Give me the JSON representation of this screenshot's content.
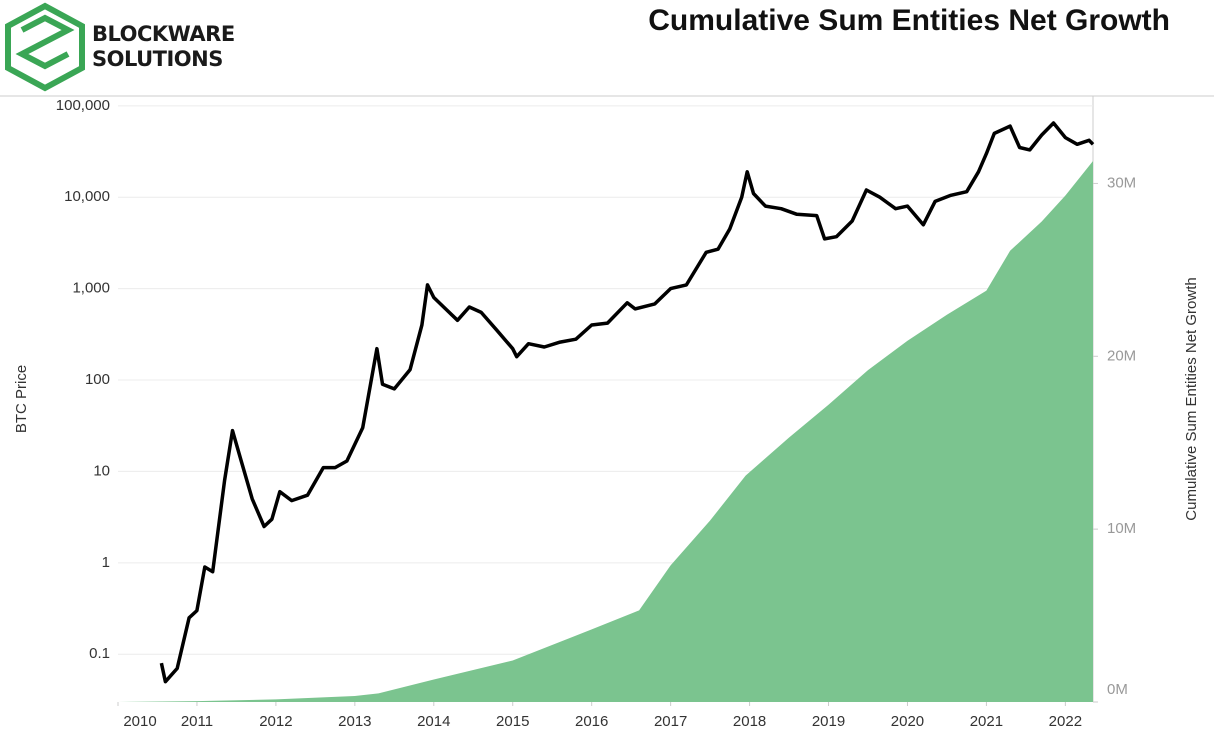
{
  "logo": {
    "line1": "BLOCKWARE",
    "line2": "SOLUTIONS"
  },
  "chart_data": {
    "type": "line",
    "title": "Cumulative Sum Entities Net Growth",
    "y_label": "BTC Price",
    "y2_label": "Cumulative Sum Entities Net Growth",
    "log_y": true,
    "grid": true,
    "xlim": [
      2010,
      2022.35
    ],
    "xticks": [
      2010,
      2011,
      2012,
      2013,
      2014,
      2015,
      2016,
      2017,
      2018,
      2019,
      2020,
      2021,
      2022
    ],
    "ylim": [
      0.03,
      125000
    ],
    "yticks": [
      0.1,
      1,
      10,
      100,
      {
        "value": 1000,
        "label": "1,000"
      },
      {
        "value": 10000,
        "label": "10,000"
      },
      {
        "value": 100000,
        "label": "100,000"
      }
    ],
    "y2lim": [
      0,
      35000000
    ],
    "y2ticks": [
      {
        "value": 0,
        "label": "0M"
      },
      {
        "value": 10000000,
        "label": "10M"
      },
      {
        "value": 20000000,
        "label": "20M"
      },
      {
        "value": 30000000,
        "label": "30M"
      }
    ],
    "series": [
      {
        "type": "area",
        "axis": "y2",
        "color": "#7bc48f",
        "x": [
          2010,
          2011,
          2012,
          2013,
          2013.3,
          2014,
          2015,
          2016,
          2016.6,
          2017,
          2017.5,
          2017.95,
          2018.5,
          2019,
          2019.5,
          2020,
          2020.5,
          2021,
          2021.3,
          2021.7,
          2022,
          2022.35
        ],
        "values": [
          0,
          50000,
          150000,
          350000,
          500000,
          1300000,
          2400000,
          4200000,
          5300000,
          7900000,
          10500000,
          13100000,
          15300000,
          17200000,
          19200000,
          20900000,
          22400000,
          23800000,
          26100000,
          27800000,
          29300000,
          31300000
        ]
      },
      {
        "type": "line",
        "axis": "y",
        "color": "#000000",
        "x": [
          2010.55,
          2010.6,
          2010.75,
          2010.9,
          2011.0,
          2011.1,
          2011.2,
          2011.35,
          2011.45,
          2011.55,
          2011.7,
          2011.85,
          2011.95,
          2012.05,
          2012.2,
          2012.4,
          2012.6,
          2012.75,
          2012.9,
          2013.1,
          2013.28,
          2013.35,
          2013.5,
          2013.7,
          2013.85,
          2013.92,
          2014.0,
          2014.15,
          2014.3,
          2014.45,
          2014.6,
          2014.8,
          2015.0,
          2015.05,
          2015.2,
          2015.4,
          2015.6,
          2015.8,
          2016.0,
          2016.2,
          2016.45,
          2016.55,
          2016.8,
          2017.0,
          2017.2,
          2017.45,
          2017.6,
          2017.75,
          2017.9,
          2017.97,
          2018.05,
          2018.2,
          2018.4,
          2018.6,
          2018.85,
          2018.95,
          2019.1,
          2019.3,
          2019.48,
          2019.65,
          2019.85,
          2020.0,
          2020.2,
          2020.35,
          2020.55,
          2020.75,
          2020.9,
          2021.0,
          2021.1,
          2021.3,
          2021.42,
          2021.55,
          2021.7,
          2021.85,
          2022.0,
          2022.15,
          2022.3,
          2022.35
        ],
        "values": [
          0.08,
          0.05,
          0.07,
          0.25,
          0.3,
          0.9,
          0.8,
          8,
          28,
          14,
          5,
          2.5,
          3,
          6,
          4.8,
          5.5,
          11,
          11,
          13,
          30,
          220,
          90,
          80,
          130,
          400,
          1100,
          800,
          600,
          450,
          630,
          550,
          350,
          220,
          180,
          250,
          230,
          260,
          280,
          400,
          420,
          700,
          600,
          680,
          1000,
          1100,
          2500,
          2700,
          4500,
          10000,
          19000,
          11000,
          8000,
          7500,
          6500,
          6300,
          3500,
          3700,
          5500,
          12000,
          10000,
          7500,
          8000,
          5000,
          9000,
          10500,
          11500,
          19000,
          30000,
          50000,
          60000,
          35000,
          33000,
          48000,
          65000,
          45000,
          38000,
          42000,
          38000
        ]
      }
    ]
  }
}
